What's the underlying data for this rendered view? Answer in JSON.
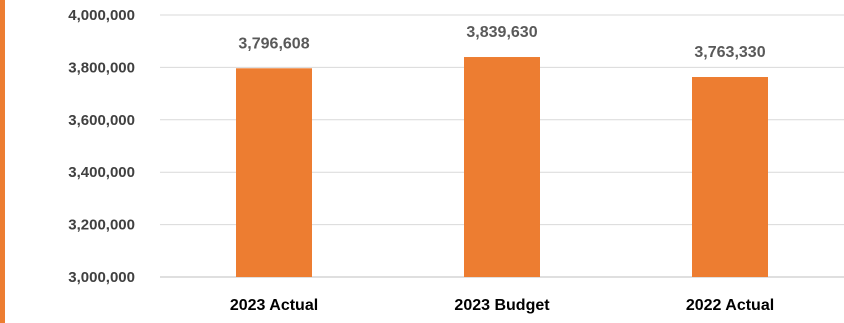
{
  "chart_data": {
    "type": "bar",
    "categories": [
      "2023 Actual",
      "2023 Budget",
      "2022 Actual"
    ],
    "values": [
      3796608,
      3839630,
      3763330
    ],
    "data_labels": [
      "3,796,608",
      "3,839,630",
      "3,763,330"
    ],
    "y_ticks": [
      {
        "value": 3000000,
        "label": "3,000,000"
      },
      {
        "value": 3200000,
        "label": "3,200,000"
      },
      {
        "value": 3400000,
        "label": "3,400,000"
      },
      {
        "value": 3600000,
        "label": "3,600,000"
      },
      {
        "value": 3800000,
        "label": "3,800,000"
      },
      {
        "value": 4000000,
        "label": "4,000,000"
      }
    ],
    "ylim": [
      3000000,
      4000000
    ],
    "grid": true,
    "legend": "none",
    "bar_color": "#ED7D31",
    "accent_color": "#ED7D31",
    "title": "",
    "xlabel": "",
    "ylabel": ""
  }
}
